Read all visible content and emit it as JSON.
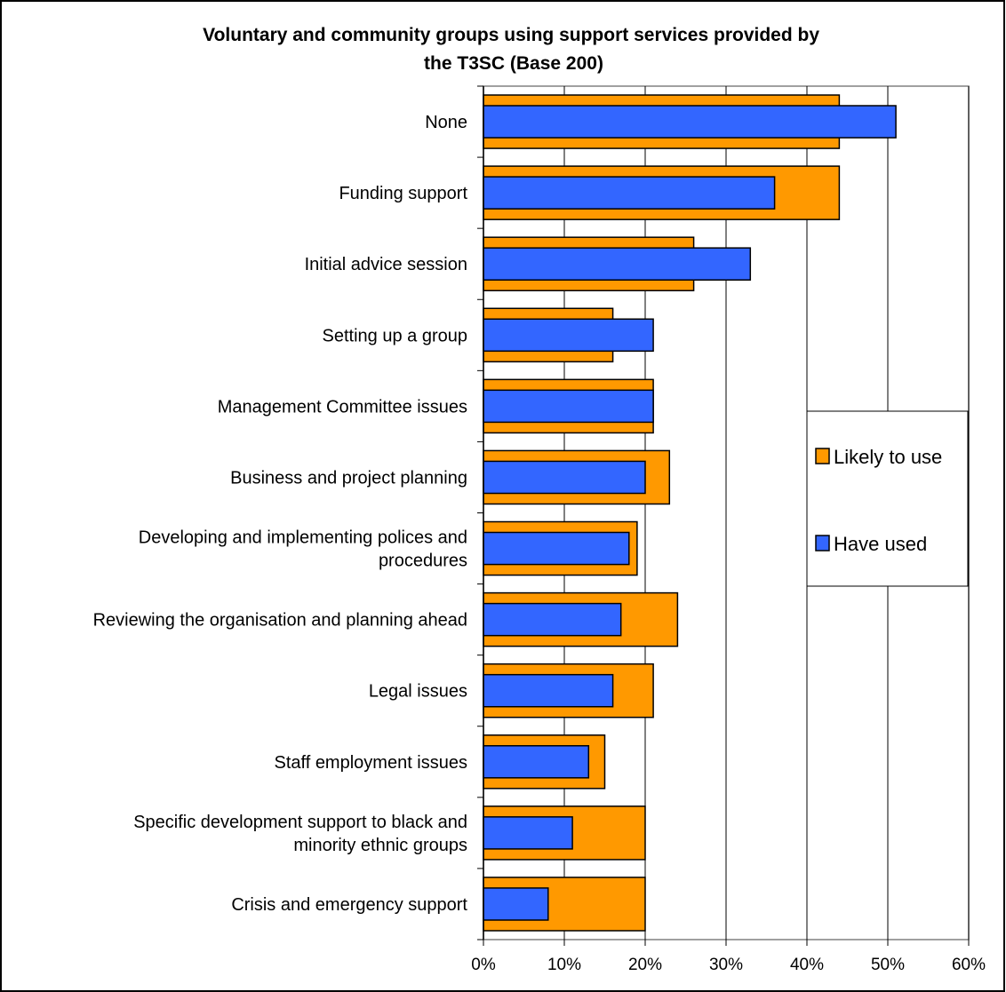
{
  "chart_data": {
    "type": "bar",
    "orientation": "horizontal",
    "title": "Voluntary and community groups using support services provided by the T3SC (Base 200)",
    "title_lines": [
      "Voluntary and community groups using support services provided by",
      "the T3SC (Base 200)"
    ],
    "categories": [
      [
        "None"
      ],
      [
        "Funding support"
      ],
      [
        "Initial advice session"
      ],
      [
        "Setting up a group"
      ],
      [
        "Management Committee issues"
      ],
      [
        "Business and project planning"
      ],
      [
        "Developing and implementing polices and",
        "procedures"
      ],
      [
        "Reviewing the organisation and planning ahead"
      ],
      [
        "Legal issues"
      ],
      [
        "Staff employment issues"
      ],
      [
        "Specific development support to black and",
        "minority ethnic groups"
      ],
      [
        "Crisis and emergency support"
      ]
    ],
    "series": [
      {
        "name": "Likely to use",
        "color": "#FF9900",
        "values": [
          44,
          44,
          26,
          16,
          21,
          23,
          19,
          24,
          21,
          15,
          20,
          20
        ]
      },
      {
        "name": "Have used",
        "color": "#3366FF",
        "values": [
          51,
          36,
          33,
          21,
          21,
          20,
          18,
          17,
          16,
          13,
          11,
          8
        ]
      }
    ],
    "xlim": [
      0,
      60
    ],
    "xticks": [
      0,
      10,
      20,
      30,
      40,
      50,
      60
    ],
    "tick_suffix": "%",
    "grid": "vertical",
    "legend_position": "right",
    "xlabel": "",
    "ylabel": ""
  }
}
